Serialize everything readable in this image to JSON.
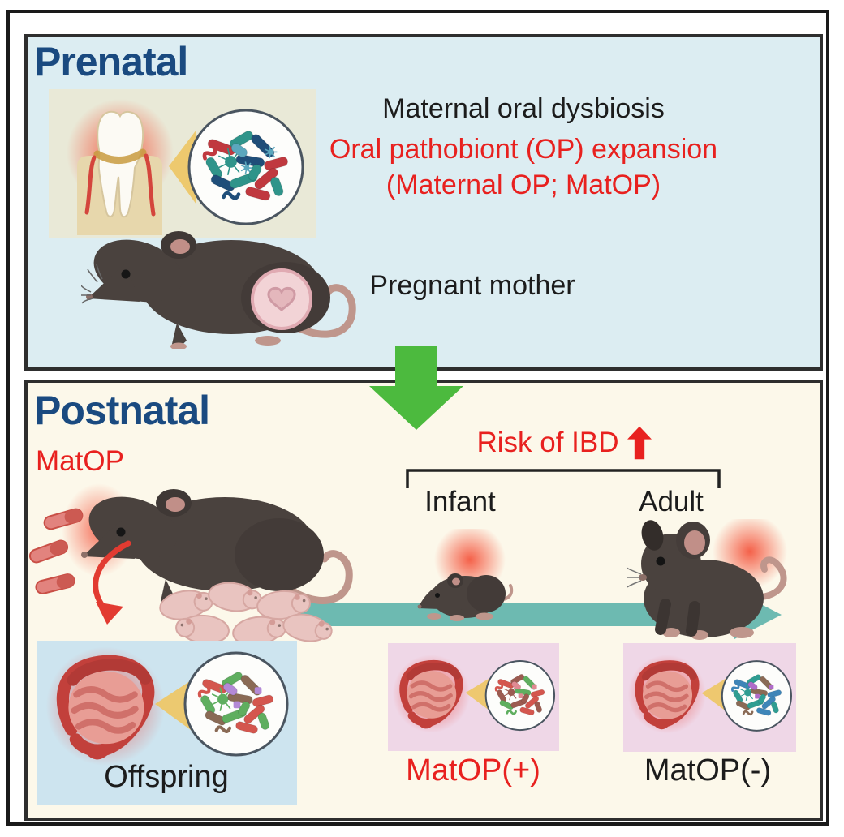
{
  "prenatal": {
    "title": "Prenatal",
    "dysbiosis_label": "Maternal oral dysbiosis",
    "expansion_label": "Oral pathobiont (OP) expansion",
    "expansion_sub_label": "(Maternal OP; MatOP)",
    "mother_label": "Pregnant mother"
  },
  "postnatal": {
    "title": "Postnatal",
    "matop_label": "MatOP",
    "risk_label": "Risk of IBD",
    "infant_label": "Infant",
    "adult_label": "Adult",
    "offspring_label": "Offspring",
    "matop_positive_label": "MatOP(+)",
    "matop_negative_label": "MatOP(-)"
  },
  "icons": {
    "flow_down_arrow": "thick green down arrow between panels",
    "risk_up_arrow": "thick red up arrow",
    "timeline_arrow": "teal right arrow (infant to adult)",
    "transfer_curved_arrow": "red curved arrow from mother mouth to pups",
    "oral_pathobiont_rod_icon": "red bacteria capsules",
    "zoom_beam": "yellow triangle magnifier beam",
    "magnified_microbes_circle": "white circle with bacteria"
  },
  "colors": {
    "ui": {
      "accent_red": "#e8211f",
      "navy": "#1a4a80",
      "ink": "#1c1c1c",
      "green_arrow": "#4cba3e",
      "teal_arrow": "#6dbab1",
      "prenatal_bg": "#dcedf2",
      "postnatal_bg": "#fcf8ea",
      "oral_box_bg": "#e9e9d7",
      "offspring_box_bg": "#cde4ef",
      "pink_box_bg": "#efd7e7",
      "panel_border": "#2e2e2e",
      "frame_border": "#1a1a1a"
    },
    "palettes": {
      "prenatal": [
        "#c0393f",
        "#2f948a",
        "#1f4e79",
        "#5ba7bd"
      ],
      "offspring": [
        "#d4564e",
        "#5fae5f",
        "#8a6a55",
        "#b389d6"
      ],
      "matop_pos": [
        "#d4564e",
        "#9c5b50",
        "#5fae5f",
        "#e08a92"
      ],
      "matop_neg": [
        "#3e85b8",
        "#2f9d92",
        "#8a6a55",
        "#b06cc9"
      ]
    }
  }
}
